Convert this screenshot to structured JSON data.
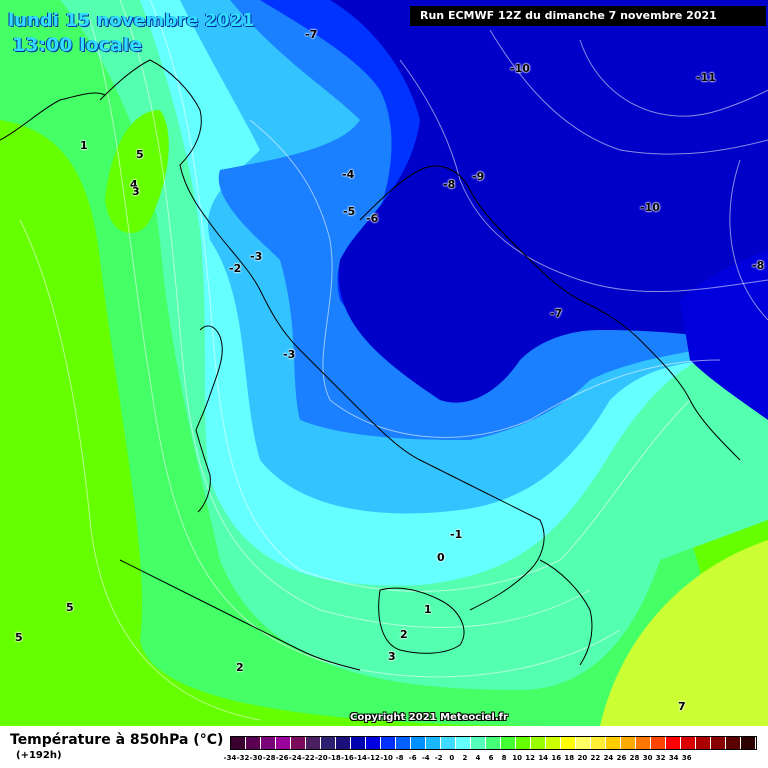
{
  "header": {
    "date": "lundi 15 novembre 2021",
    "local_time": "13:00 locale",
    "run_info": "Run ECMWF 12Z du dimanche 7 novembre 2021"
  },
  "map": {
    "field": "Température à 850hPa",
    "contour_labels": [
      {
        "text": "-7"
      },
      {
        "text": "-10"
      },
      {
        "text": "-11"
      },
      {
        "text": "-9"
      },
      {
        "text": "-8"
      },
      {
        "text": "-10"
      },
      {
        "text": "-8"
      },
      {
        "text": "-4"
      },
      {
        "text": "-5"
      },
      {
        "text": "-6"
      },
      {
        "text": "-2"
      },
      {
        "text": "-3"
      },
      {
        "text": "-3"
      },
      {
        "text": "-7"
      },
      {
        "text": "1"
      },
      {
        "text": "5"
      },
      {
        "text": "4"
      },
      {
        "text": "3"
      },
      {
        "text": "-1"
      },
      {
        "text": "0"
      },
      {
        "text": "1"
      },
      {
        "text": "2"
      },
      {
        "text": "3"
      },
      {
        "text": "5"
      },
      {
        "text": "5"
      },
      {
        "text": "2"
      },
      {
        "text": "7"
      }
    ],
    "colors": {
      "deep_blue": "#0000c8",
      "blue": "#0033ff",
      "mid_blue": "#1a80ff",
      "light_blue": "#33c4ff",
      "cyan": "#66ffff",
      "aqua_green": "#55ffb0",
      "green": "#44ff66",
      "bright_green": "#66ff00",
      "yellow_green": "#ccff33"
    }
  },
  "copyright": "Copyright 2021 Meteociel.fr",
  "legend": {
    "title": "Température à 850hPa (°C)",
    "lead_time": "(+192h)",
    "ticks": [
      "-34",
      "-32",
      "-30",
      "-28",
      "-26",
      "-24",
      "-22",
      "-20",
      "-18",
      "-16",
      "-14",
      "-12",
      "-10",
      "-8",
      "-6",
      "-4",
      "-2",
      "0",
      "2",
      "4",
      "6",
      "8",
      "10",
      "12",
      "14",
      "16",
      "18",
      "20",
      "22",
      "24",
      "26",
      "28",
      "30",
      "32",
      "34",
      "36"
    ],
    "swatch_colors": [
      "#3a0030",
      "#5a0050",
      "#7a007a",
      "#9a009a",
      "#7a0a5a",
      "#4a2060",
      "#2a1f70",
      "#1b107a",
      "#0000b0",
      "#0000e0",
      "#0030ff",
      "#0060ff",
      "#0090ff",
      "#1cb8ff",
      "#40dcff",
      "#66ffff",
      "#55ffbb",
      "#44ff77",
      "#44ff33",
      "#66ff00",
      "#99ff00",
      "#ccff00",
      "#ffff00",
      "#ffff66",
      "#ffee33",
      "#ffcc00",
      "#ffaa00",
      "#ff7700",
      "#ff4400",
      "#ff0000",
      "#dd0000",
      "#aa0000",
      "#880000",
      "#5a0000",
      "#2a0000"
    ]
  }
}
